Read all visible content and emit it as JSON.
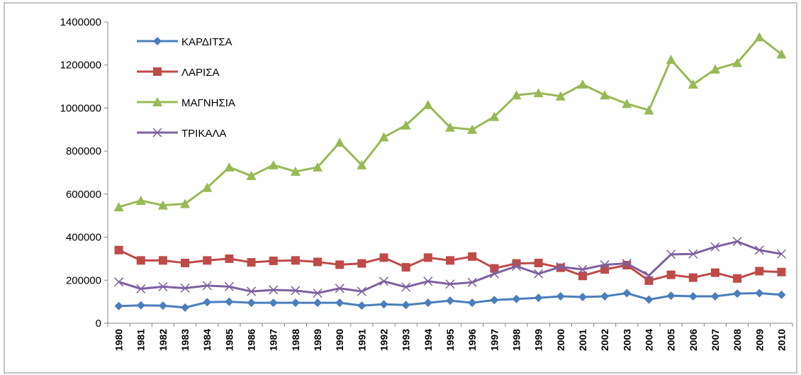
{
  "chart_data": {
    "type": "line",
    "categories": [
      "1980",
      "1981",
      "1982",
      "1983",
      "1984",
      "1985",
      "1986",
      "1987",
      "1988",
      "1989",
      "1990",
      "1991",
      "1992",
      "1993",
      "1994",
      "1995",
      "1996",
      "1997",
      "1998",
      "1999",
      "2000",
      "2001",
      "2002",
      "2003",
      "2004",
      "2005",
      "2006",
      "2007",
      "2008",
      "2009",
      "2010"
    ],
    "series": [
      {
        "name": "ΚΑΡΔΙΤΣΑ",
        "color": "#4a7ebb",
        "marker": "diamond",
        "values": [
          80000,
          83000,
          82000,
          73000,
          98000,
          100000,
          95000,
          95000,
          95000,
          95000,
          95000,
          82000,
          88000,
          85000,
          95000,
          105000,
          95000,
          108000,
          113000,
          118000,
          125000,
          122000,
          125000,
          140000,
          110000,
          128000,
          125000,
          125000,
          138000,
          140000,
          132000
        ]
      },
      {
        "name": "ΛΑΡΙΣΑ",
        "color": "#be4b48",
        "marker": "square",
        "values": [
          340000,
          292000,
          292000,
          280000,
          292000,
          300000,
          283000,
          290000,
          292000,
          285000,
          272000,
          278000,
          305000,
          260000,
          305000,
          292000,
          310000,
          255000,
          278000,
          280000,
          258000,
          220000,
          250000,
          270000,
          198000,
          225000,
          212000,
          235000,
          208000,
          242000,
          238000
        ]
      },
      {
        "name": "ΜΑΓΝΗΣΙΑ",
        "color": "#98b954",
        "marker": "triangle",
        "values": [
          540000,
          570000,
          548000,
          555000,
          630000,
          725000,
          685000,
          735000,
          705000,
          725000,
          840000,
          735000,
          865000,
          920000,
          1015000,
          910000,
          900000,
          960000,
          1060000,
          1070000,
          1055000,
          1110000,
          1060000,
          1020000,
          990000,
          1225000,
          1110000,
          1180000,
          1210000,
          1330000,
          1250000
        ]
      },
      {
        "name": "ΤΡΙΚΑΛΑ",
        "color": "#7d60a0",
        "marker": "x",
        "values": [
          192000,
          160000,
          170000,
          163000,
          175000,
          170000,
          148000,
          155000,
          152000,
          140000,
          162000,
          148000,
          195000,
          168000,
          195000,
          182000,
          190000,
          230000,
          265000,
          230000,
          262000,
          250000,
          272000,
          278000,
          222000,
          320000,
          322000,
          355000,
          380000,
          340000,
          322000
        ]
      }
    ],
    "ylim": [
      0,
      1400000
    ],
    "yticks": [
      0,
      200000,
      400000,
      600000,
      800000,
      1000000,
      1200000,
      1400000
    ],
    "grid": false,
    "legend": "top-left"
  }
}
